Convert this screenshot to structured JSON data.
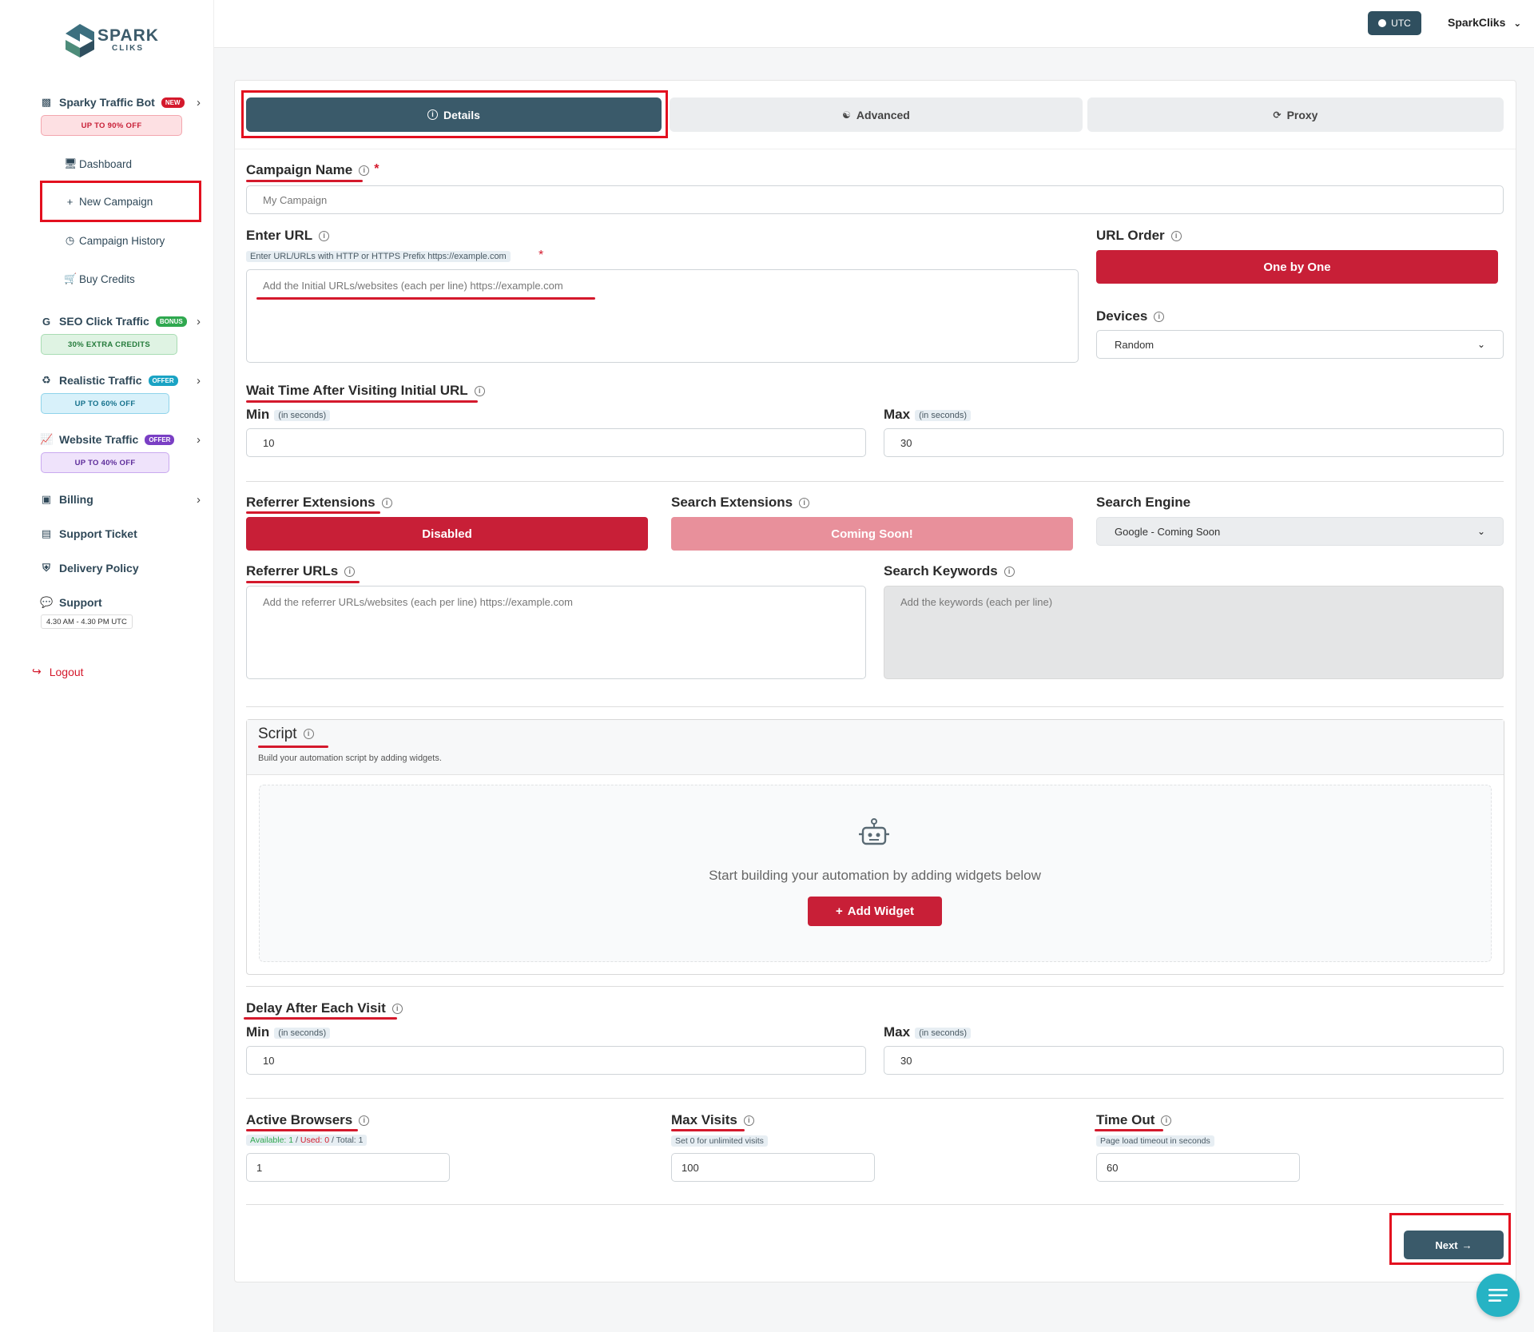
{
  "brand": {
    "name": "SPARK",
    "sub": "CLIKS"
  },
  "topbar": {
    "timezone": "UTC",
    "user": "SparkCliks"
  },
  "sidebar": {
    "traffic_bot": {
      "label": "Sparky Traffic Bot",
      "badge": "NEW",
      "promo": "UP TO 90% OFF"
    },
    "sub_items": {
      "dashboard": "Dashboard",
      "new_campaign": "New Campaign",
      "campaign_history": "Campaign History",
      "buy_credits": "Buy Credits"
    },
    "seo": {
      "label": "SEO Click Traffic",
      "badge": "BONUS",
      "promo": "30% EXTRA CREDITS"
    },
    "realistic": {
      "label": "Realistic Traffic",
      "badge": "OFFER",
      "promo": "UP TO 60% OFF"
    },
    "website": {
      "label": "Website Traffic",
      "badge": "OFFER",
      "promo": "UP TO 40% OFF"
    },
    "billing": "Billing",
    "support_ticket": "Support Ticket",
    "delivery_policy": "Delivery Policy",
    "support": {
      "label": "Support",
      "hours": "4.30 AM - 4.30 PM UTC"
    },
    "logout": "Logout"
  },
  "tabs": {
    "details": "Details",
    "advanced": "Advanced",
    "proxy": "Proxy"
  },
  "form": {
    "campaign_name": {
      "label": "Campaign Name",
      "placeholder": "My Campaign"
    },
    "enter_url": {
      "label": "Enter URL",
      "hint": "Enter URL/URLs with HTTP or HTTPS Prefix https://example.com",
      "placeholder": "Add the Initial URLs/websites (each per line)  https://example.com"
    },
    "url_order": {
      "label": "URL Order",
      "value": "One by One"
    },
    "devices": {
      "label": "Devices",
      "value": "Random"
    },
    "wait_time": {
      "label": "Wait Time After Visiting Initial URL",
      "min_label": "Min",
      "max_label": "Max",
      "unit": "(in seconds)",
      "min": "10",
      "max": "30"
    },
    "referrer_extensions": {
      "label": "Referrer Extensions",
      "value": "Disabled"
    },
    "search_extensions": {
      "label": "Search Extensions",
      "value": "Coming Soon!"
    },
    "search_engine": {
      "label": "Search Engine",
      "value": "Google - Coming Soon"
    },
    "referrer_urls": {
      "label": "Referrer URLs",
      "placeholder": "Add the referrer URLs/websites (each per line)  https://example.com"
    },
    "search_keywords": {
      "label": "Search Keywords",
      "placeholder": "Add the keywords (each per line)"
    },
    "script": {
      "title": "Script",
      "subtitle": "Build your automation script by adding widgets.",
      "empty": "Start building your automation by adding widgets below",
      "add_widget": "Add Widget"
    },
    "delay": {
      "label": "Delay After Each Visit",
      "min_label": "Min",
      "max_label": "Max",
      "unit": "(in seconds)",
      "min": "10",
      "max": "30"
    },
    "active_browsers": {
      "label": "Active Browsers",
      "available": "Available: 1",
      "used": "Used: 0",
      "total": "Total: 1",
      "value": "1"
    },
    "max_visits": {
      "label": "Max Visits",
      "hint": "Set 0 for unlimited visits",
      "value": "100"
    },
    "time_out": {
      "label": "Time Out",
      "hint": "Page load timeout in seconds",
      "value": "60"
    }
  },
  "next_button": "Next",
  "colors": {
    "accent": "#3a5a6a",
    "brand_red": "#c81f37",
    "highlight": "#e3101f",
    "fab": "#26b3c4"
  }
}
